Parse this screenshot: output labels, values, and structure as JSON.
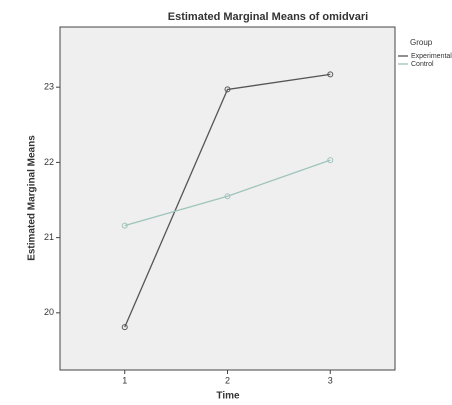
{
  "chart_data": {
    "type": "line",
    "title": "Estimated Marginal Means of omidvari",
    "x_label": "Time",
    "y_label": "Estimated Marginal Means",
    "legend_title": "Group",
    "legend_position": "right",
    "x": [
      1,
      2,
      3
    ],
    "xlim": [
      0.37,
      3.63
    ],
    "xticks": [
      1,
      2,
      3
    ],
    "ylim": [
      19.24,
      23.8
    ],
    "yticks": [
      20,
      21,
      22,
      23
    ],
    "series": [
      {
        "name": "Experimental",
        "color": "#555555",
        "values": [
          19.81,
          22.97,
          23.17
        ]
      },
      {
        "name": "Control",
        "color": "#9fc4bb",
        "values": [
          21.16,
          21.55,
          22.03
        ]
      }
    ]
  }
}
